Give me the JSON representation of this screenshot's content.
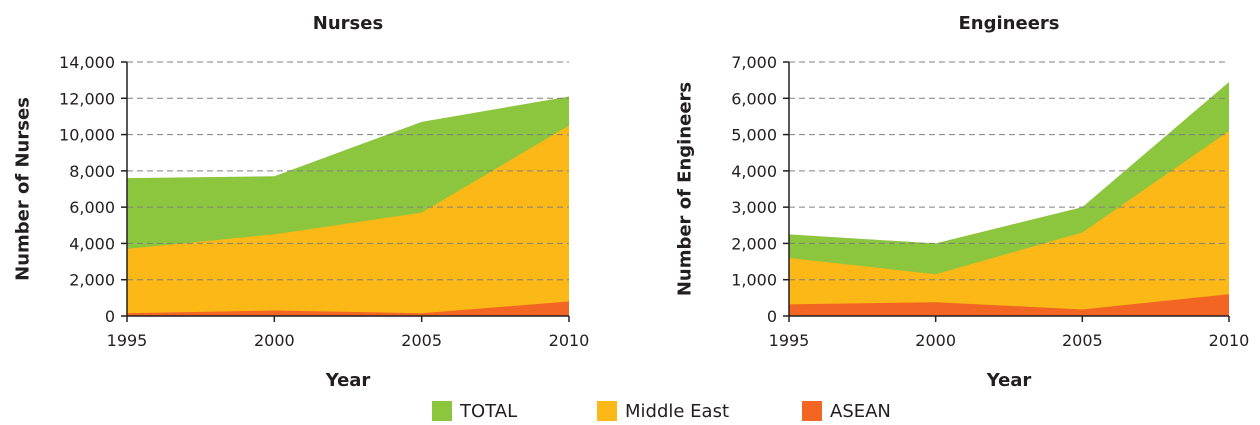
{
  "chart_data": [
    {
      "type": "area",
      "title": "Nurses",
      "xlabel": "Year",
      "ylabel": "Number of Nurses",
      "x": [
        1995,
        2000,
        2005,
        2010
      ],
      "ylim": [
        0,
        14000
      ],
      "yticks": [
        0,
        2000,
        4000,
        6000,
        8000,
        10000,
        12000,
        14000
      ],
      "ytick_labels": [
        "0",
        "2,000",
        "4,000",
        "6,000",
        "8,000",
        "10,000",
        "12,000",
        "14,000"
      ],
      "xtick_labels": [
        "1995",
        "2000",
        "2005",
        "2010"
      ],
      "grid": "horizontal-dashed",
      "series": [
        {
          "name": "TOTAL",
          "values": [
            7600,
            7700,
            10700,
            12100
          ]
        },
        {
          "name": "Middle East",
          "values": [
            3700,
            4500,
            5700,
            10500
          ]
        },
        {
          "name": "ASEAN",
          "values": [
            150,
            300,
            150,
            800
          ]
        }
      ]
    },
    {
      "type": "area",
      "title": "Engineers",
      "xlabel": "Year",
      "ylabel": "Number of Engineers",
      "x": [
        1995,
        2000,
        2005,
        2010
      ],
      "ylim": [
        0,
        7000
      ],
      "yticks": [
        0,
        1000,
        2000,
        3000,
        4000,
        5000,
        6000,
        7000
      ],
      "ytick_labels": [
        "0",
        "1,000",
        "2,000",
        "3,000",
        "4,000",
        "5,000",
        "6,000",
        "7,000"
      ],
      "xtick_labels": [
        "1995",
        "2000",
        "2005",
        "2010"
      ],
      "grid": "horizontal-dashed",
      "series": [
        {
          "name": "TOTAL",
          "values": [
            2250,
            2000,
            3000,
            6450
          ]
        },
        {
          "name": "Middle East",
          "values": [
            1600,
            1150,
            2300,
            5100
          ]
        },
        {
          "name": "ASEAN",
          "values": [
            320,
            380,
            180,
            600
          ]
        }
      ]
    }
  ],
  "legend": [
    {
      "label": "TOTAL",
      "color": "#8cc63f"
    },
    {
      "label": "Middle East",
      "color": "#fbb817"
    },
    {
      "label": "ASEAN",
      "color": "#f26522"
    }
  ],
  "legend_placement": "bottom-center",
  "colors": {
    "TOTAL": "#8cc63f",
    "Middle East": "#fbb817",
    "ASEAN": "#f26522",
    "grid": "#808080",
    "axis": "#231f20"
  }
}
